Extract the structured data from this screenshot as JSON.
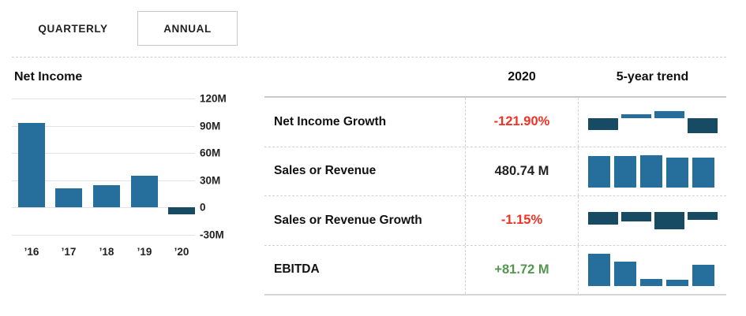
{
  "tabs": {
    "quarterly": "QUARTERLY",
    "annual": "ANNUAL",
    "selected": "ANNUAL"
  },
  "colors": {
    "bar_positive": "#266f9c",
    "bar_negative": "#174a63",
    "value_negative": "#f23023",
    "value_positive": "#53964f",
    "text": "#222222"
  },
  "chart_data": [
    {
      "type": "bar",
      "title": "Net Income",
      "categories": [
        "’16",
        "’17",
        "’18",
        "’19",
        "’20"
      ],
      "values": [
        93,
        21,
        24,
        35,
        -8
      ],
      "unit": "M",
      "xlabel": "",
      "ylabel": "",
      "ylim": [
        -30,
        120
      ],
      "yticks": [
        120,
        90,
        60,
        30,
        0,
        -30
      ],
      "ytick_labels": [
        "120M",
        "90M",
        "60M",
        "30M",
        "0",
        "-30M"
      ],
      "grid": true,
      "legend": false
    },
    {
      "type": "bar",
      "title": "5-year trend sparklines (relative heights, sign = direction)",
      "series": [
        {
          "name": "Net Income Growth",
          "values": [
            -15,
            5,
            9,
            -19
          ]
        },
        {
          "name": "Sales or Revenue",
          "values": [
            40,
            40,
            41,
            38,
            38
          ]
        },
        {
          "name": "Sales or Revenue Growth",
          "values": [
            -16,
            -12,
            -22,
            -10
          ]
        },
        {
          "name": "EBITDA",
          "values": [
            41,
            31,
            9,
            8,
            27
          ]
        }
      ]
    }
  ],
  "table": {
    "headers": {
      "year": "2020",
      "trend": "5-year trend"
    },
    "rows": [
      {
        "slug": "net-income-growth",
        "label": "Net Income Growth",
        "value": "-121.90%",
        "value_color": "negative",
        "trend": [
          -15,
          5,
          9,
          -19
        ]
      },
      {
        "slug": "sales-or-revenue",
        "label": "Sales or Revenue",
        "value": "480.74 M",
        "value_color": "neutral",
        "trend": [
          40,
          40,
          41,
          38,
          38
        ]
      },
      {
        "slug": "sales-or-revenue-growth",
        "label": "Sales or Revenue Growth",
        "value": "-1.15%",
        "value_color": "negative",
        "trend": [
          -16,
          -12,
          -22,
          -10
        ]
      },
      {
        "slug": "ebitda",
        "label": "EBITDA",
        "value": "+81.72 M",
        "value_color": "positive",
        "trend": [
          41,
          31,
          9,
          8,
          27
        ]
      }
    ]
  }
}
